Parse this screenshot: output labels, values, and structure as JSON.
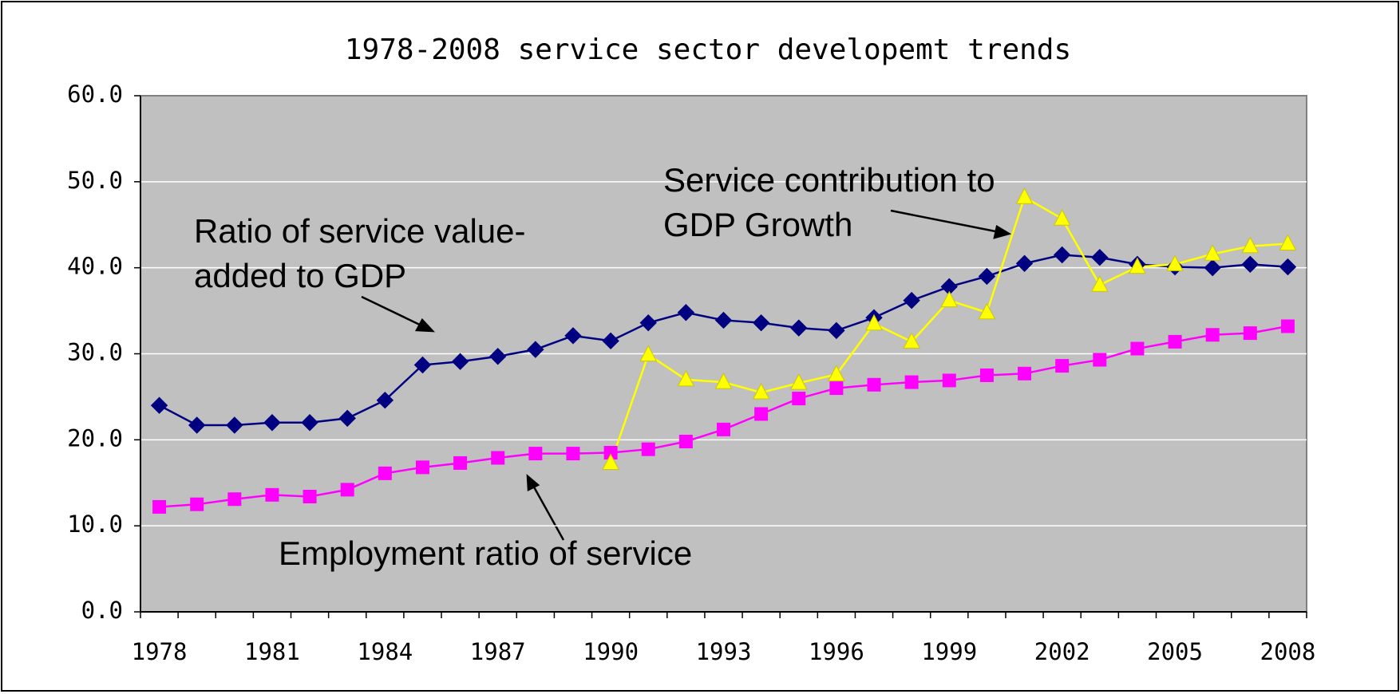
{
  "chart_data": {
    "type": "line",
    "title": "1978-2008 service sector developemt trends",
    "categories": [
      "1978",
      null,
      null,
      "1981",
      null,
      null,
      "1984",
      null,
      null,
      "1987",
      null,
      null,
      "1990",
      null,
      null,
      "1993",
      null,
      null,
      "1996",
      null,
      null,
      "1999",
      null,
      null,
      "2002",
      null,
      null,
      "2005",
      null,
      null,
      "2008"
    ],
    "series": [
      {
        "name": "Ratio of service value-added to GDP",
        "color": "#000080",
        "marker": "diamond",
        "values": [
          24.0,
          21.7,
          21.7,
          22.0,
          22.0,
          22.5,
          24.6,
          28.7,
          29.1,
          29.7,
          30.5,
          32.1,
          31.5,
          33.6,
          34.8,
          33.9,
          33.6,
          33.0,
          32.7,
          34.2,
          36.2,
          37.8,
          39.0,
          40.5,
          41.5,
          41.2,
          40.4,
          40.1,
          40.0,
          40.4,
          40.1
        ]
      },
      {
        "name": "Employment ratio of service",
        "color": "#ff00ff",
        "marker": "square",
        "values": [
          12.2,
          12.5,
          13.1,
          13.6,
          13.4,
          14.2,
          16.1,
          16.8,
          17.3,
          17.9,
          18.4,
          18.4,
          18.5,
          18.9,
          19.8,
          21.2,
          23.0,
          24.8,
          26.0,
          26.4,
          26.7,
          26.9,
          27.5,
          27.7,
          28.6,
          29.3,
          30.6,
          31.4,
          32.2,
          32.4,
          33.2
        ]
      },
      {
        "name": "Service contribution to GDP Growth",
        "color": "#ffff00",
        "marker": "triangle",
        "values": [
          null,
          null,
          null,
          null,
          null,
          null,
          null,
          null,
          null,
          null,
          null,
          null,
          17.3,
          29.9,
          27.0,
          26.7,
          25.5,
          26.6,
          27.6,
          33.5,
          31.4,
          36.2,
          34.8,
          48.2,
          45.7,
          38.0,
          40.1,
          40.4,
          41.6,
          42.5,
          42.8
        ]
      }
    ],
    "ylim": [
      0,
      60
    ],
    "yticks": [
      {
        "value": 0,
        "label": "0.0"
      },
      {
        "value": 10,
        "label": "10.0"
      },
      {
        "value": 20,
        "label": "20.0"
      },
      {
        "value": 30,
        "label": "30.0"
      },
      {
        "value": 40,
        "label": "40.0"
      },
      {
        "value": 50,
        "label": "50.0"
      },
      {
        "value": 60,
        "label": "60.0"
      }
    ],
    "grid": true,
    "annotations": [
      {
        "lines": [
          "Ratio of service value-",
          "added to GDP"
        ]
      },
      {
        "lines": [
          "Service contribution to",
          "GDP Growth"
        ]
      },
      {
        "lines": [
          "Employment ratio of service"
        ]
      }
    ]
  }
}
